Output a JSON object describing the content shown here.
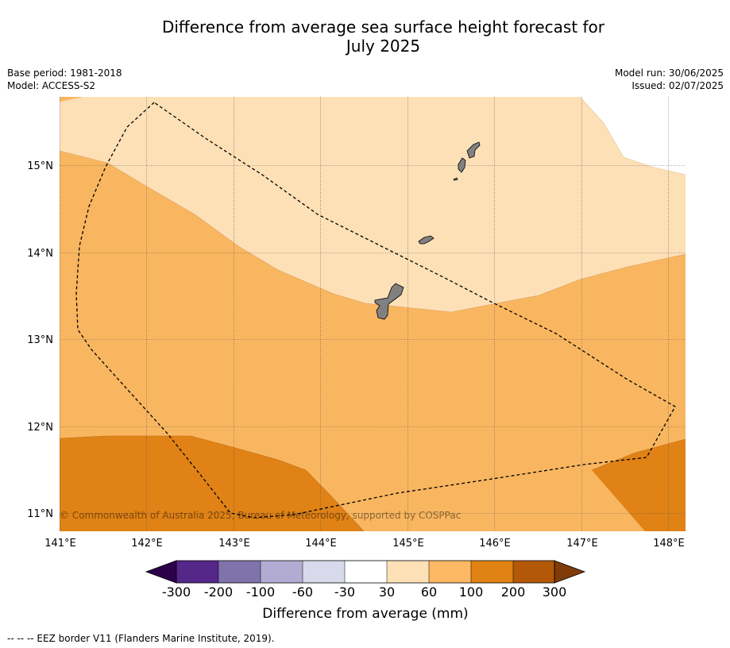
{
  "title": {
    "line1": "Difference from average sea surface height forecast for",
    "line2": "July 2025"
  },
  "meta_left": {
    "base_period": "Base period: 1981-2018",
    "model": "Model: ACCESS-S2"
  },
  "meta_right": {
    "model_run": "Model run: 30/06/2025",
    "issued": "Issued: 02/07/2025"
  },
  "map": {
    "lon_ticks": [
      "141°E",
      "142°E",
      "143°E",
      "144°E",
      "145°E",
      "146°E",
      "147°E",
      "148°E"
    ],
    "lat_ticks": [
      "11°N",
      "12°N",
      "13°N",
      "14°N",
      "15°N"
    ],
    "copyright": "© Commonwealth of Australia 2025, Bureau of Meteorology, supported by COSPPac",
    "legend_colors": {
      "light": "#fde0b6",
      "medium": "#f9b660",
      "dark": "#e08215",
      "land": "#808080"
    }
  },
  "colorbar": {
    "title": "Difference from average (mm)",
    "labels": [
      "-300",
      "-200",
      "-100",
      "-60",
      "-30",
      "30",
      "60",
      "100",
      "200",
      "300"
    ],
    "colors": [
      "#2d004b",
      "#542788",
      "#8073ac",
      "#b2abd2",
      "#d8daeb",
      "#ffffff",
      "#fee0b6",
      "#fdb863",
      "#e08214",
      "#b35806",
      "#7f3b08"
    ]
  },
  "footer": "--  --  -- EEZ border V11 (Flanders Marine Institute, 2019)."
}
